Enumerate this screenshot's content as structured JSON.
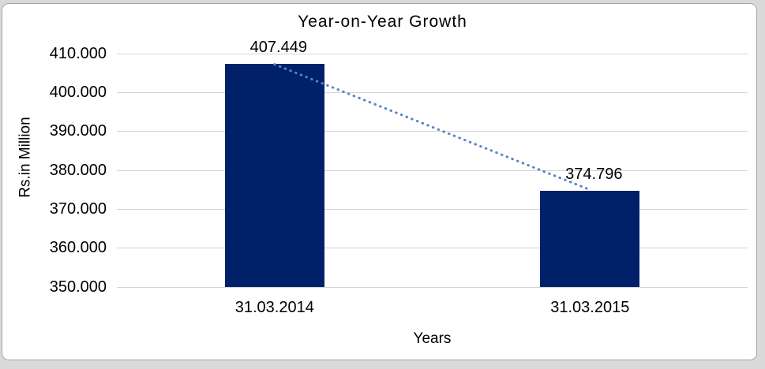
{
  "frame": {
    "background_color": "#D9D9D9",
    "chart_background_color": "#FFFFFF",
    "border_color": "#A6A6A6"
  },
  "chart_data": {
    "type": "bar",
    "title": "Year-on-Year Growth",
    "xlabel": "Years",
    "ylabel": "Rs.in Million",
    "categories": [
      "31.03.2014",
      "31.03.2015"
    ],
    "values": [
      407.449,
      374.796
    ],
    "data_labels": [
      "407.449",
      "374.796"
    ],
    "ylim": [
      350,
      410
    ],
    "ytick_step": 10,
    "ytick_labels": [
      "350.000",
      "360.000",
      "370.000",
      "380.000",
      "390.000",
      "400.000",
      "410.000"
    ],
    "grid": true,
    "legend": false,
    "bar_color": "#002169",
    "gridline_color": "#D3D3D3",
    "text_color": "#000000",
    "trendline": {
      "style": "dotted",
      "color": "#5585C8",
      "from": "top of bar 31.03.2014",
      "to": "top of bar 31.03.2015"
    }
  }
}
